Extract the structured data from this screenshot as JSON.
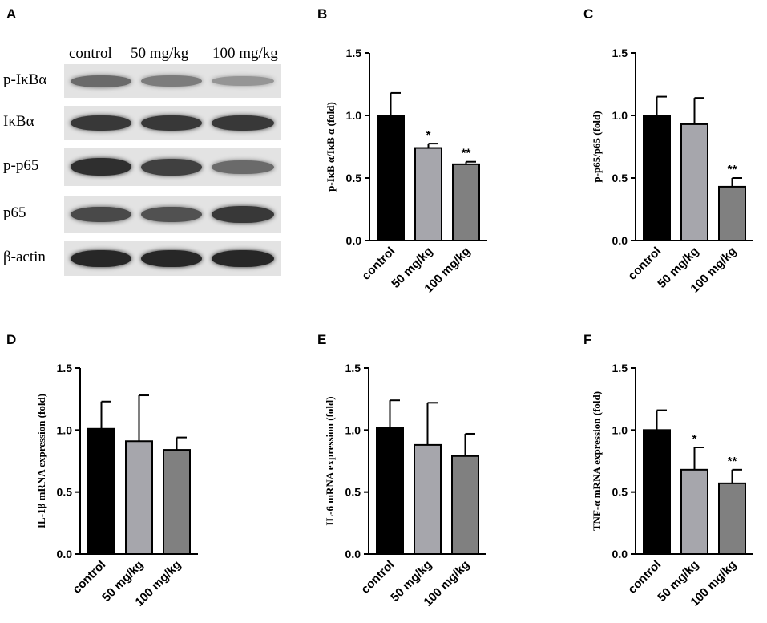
{
  "panels": [
    "A",
    "B",
    "C",
    "D",
    "E",
    "F"
  ],
  "western_blot": {
    "lanes": [
      "control",
      "50 mg/kg",
      "100 mg/kg"
    ],
    "rows": [
      {
        "label": "p-IκBα",
        "intensity": [
          0.55,
          0.45,
          0.3
        ]
      },
      {
        "label": "IκBα",
        "intensity": [
          0.85,
          0.85,
          0.85
        ]
      },
      {
        "label": "p-p65",
        "intensity": [
          0.9,
          0.8,
          0.55
        ]
      },
      {
        "label": "p65",
        "intensity": [
          0.75,
          0.7,
          0.85
        ]
      },
      {
        "label": "β-actin",
        "intensity": [
          0.95,
          0.95,
          0.95
        ]
      }
    ]
  },
  "chart_data": [
    {
      "panel": "B",
      "type": "bar",
      "categories": [
        "control",
        "50 mg/kg",
        "100 mg/kg"
      ],
      "values": [
        1.0,
        0.74,
        0.61
      ],
      "errors": [
        0.18,
        0.035,
        0.02
      ],
      "significance": [
        "",
        "*",
        "**"
      ],
      "ylabel": "p-IκB α/IκB α (fold)",
      "ylim": [
        0,
        1.5
      ],
      "yticks": [
        "0.0",
        "0.5",
        "1.0",
        "1.5"
      ],
      "colors": [
        "#000000",
        "#a6a6ac",
        "#808080"
      ]
    },
    {
      "panel": "C",
      "type": "bar",
      "categories": [
        "control",
        "50 mg/kg",
        "100 mg/kg"
      ],
      "values": [
        1.0,
        0.93,
        0.43
      ],
      "errors": [
        0.15,
        0.21,
        0.07
      ],
      "significance": [
        "",
        "",
        "**"
      ],
      "ylabel": "p-p65/p65 (fold)",
      "ylim": [
        0,
        1.5
      ],
      "yticks": [
        "0.0",
        "0.5",
        "1.0",
        "1.5"
      ],
      "colors": [
        "#000000",
        "#a6a6ac",
        "#808080"
      ]
    },
    {
      "panel": "D",
      "type": "bar",
      "categories": [
        "control",
        "50 mg/kg",
        "100 mg/kg"
      ],
      "values": [
        1.01,
        0.91,
        0.84
      ],
      "errors": [
        0.22,
        0.37,
        0.1
      ],
      "significance": [
        "",
        "",
        ""
      ],
      "ylabel": "IL-1β mRNA expression (fold)",
      "ylim": [
        0,
        1.5
      ],
      "yticks": [
        "0.0",
        "0.5",
        "1.0",
        "1.5"
      ],
      "colors": [
        "#000000",
        "#a6a6ac",
        "#808080"
      ]
    },
    {
      "panel": "E",
      "type": "bar",
      "categories": [
        "control",
        "50 mg/kg",
        "100 mg/kg"
      ],
      "values": [
        1.02,
        0.88,
        0.79
      ],
      "errors": [
        0.22,
        0.34,
        0.18
      ],
      "significance": [
        "",
        "",
        ""
      ],
      "ylabel": "IL-6 mRNA expression (fold)",
      "ylim": [
        0,
        1.5
      ],
      "yticks": [
        "0.0",
        "0.5",
        "1.0",
        "1.5"
      ],
      "colors": [
        "#000000",
        "#a6a6ac",
        "#808080"
      ]
    },
    {
      "panel": "F",
      "type": "bar",
      "categories": [
        "control",
        "50 mg/kg",
        "100 mg/kg"
      ],
      "values": [
        1.0,
        0.68,
        0.57
      ],
      "errors": [
        0.16,
        0.18,
        0.11
      ],
      "significance": [
        "",
        "*",
        "**"
      ],
      "ylabel": "TNF-α mRNA expression (fold)",
      "ylim": [
        0,
        1.5
      ],
      "yticks": [
        "0.0",
        "0.5",
        "1.0",
        "1.5"
      ],
      "colors": [
        "#000000",
        "#a6a6ac",
        "#808080"
      ]
    }
  ]
}
